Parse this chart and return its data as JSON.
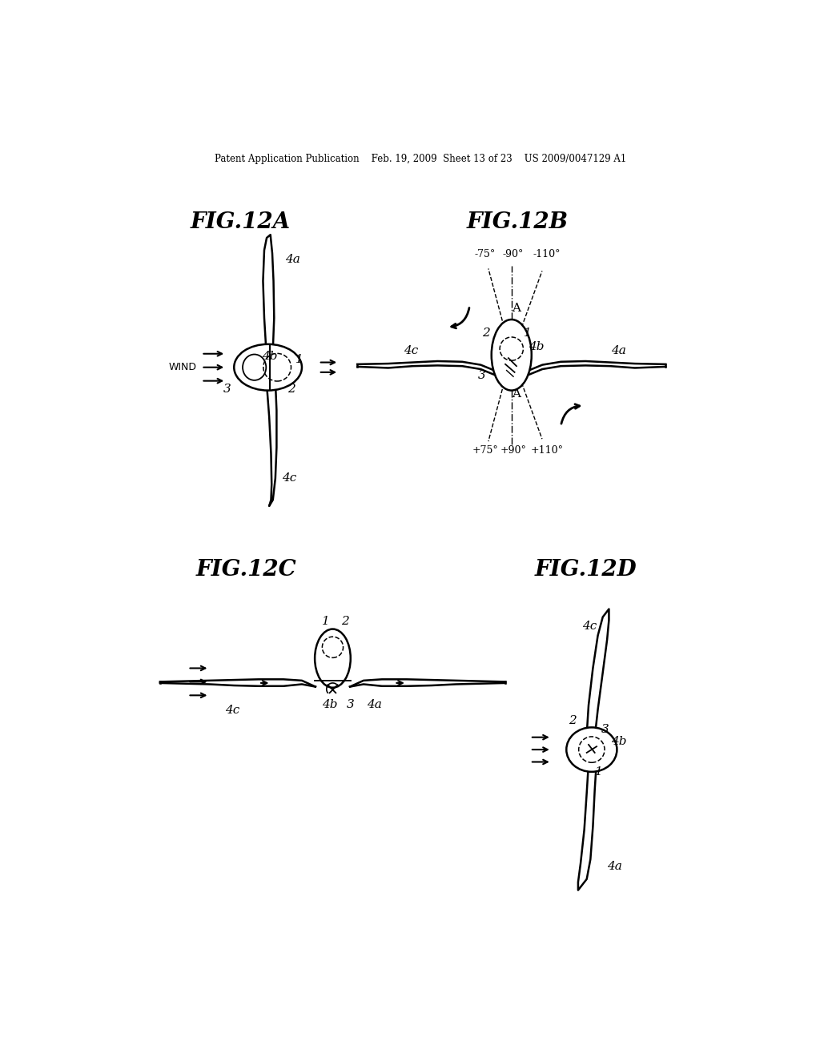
{
  "bg_color": "#ffffff",
  "header": "Patent Application Publication    Feb. 19, 2009  Sheet 13 of 23    US 2009/0047129 A1",
  "titles": [
    "FIG.12A",
    "FIG.12B",
    "FIG.12C",
    "FIG.12D"
  ],
  "lc": "#000000",
  "tc": "#000000",
  "lw": 1.8,
  "tlw": 1.1,
  "lfs": 11,
  "tfs": 20,
  "hfs": 8.5,
  "afs": 9
}
